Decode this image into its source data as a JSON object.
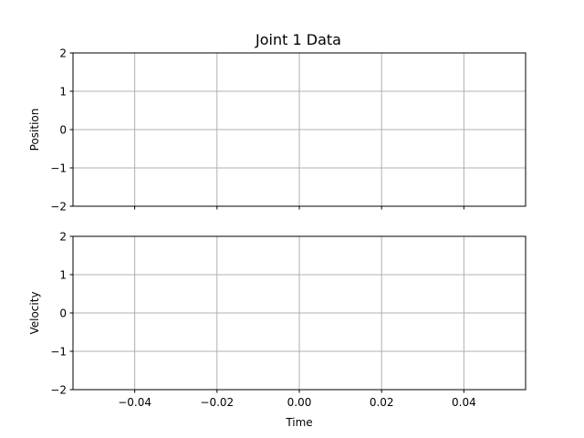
{
  "chart_data": [
    {
      "type": "line",
      "title": "Joint 1 Data",
      "xlabel": "",
      "ylabel": "Position",
      "xlim": [
        -0.055,
        0.055
      ],
      "ylim": [
        -2,
        2
      ],
      "xticks": [
        -0.04,
        -0.02,
        0.0,
        0.02,
        0.04
      ],
      "yticks": [
        -2,
        -1,
        0,
        1,
        2
      ],
      "show_xtick_labels": false,
      "grid": true,
      "series": []
    },
    {
      "type": "line",
      "title": "",
      "xlabel": "Time",
      "ylabel": "Velocity",
      "xlim": [
        -0.055,
        0.055
      ],
      "ylim": [
        -2,
        2
      ],
      "xticks": [
        -0.04,
        -0.02,
        0.0,
        0.02,
        0.04
      ],
      "yticks": [
        -2,
        -1,
        0,
        1,
        2
      ],
      "show_xtick_labels": true,
      "grid": true,
      "series": []
    }
  ]
}
